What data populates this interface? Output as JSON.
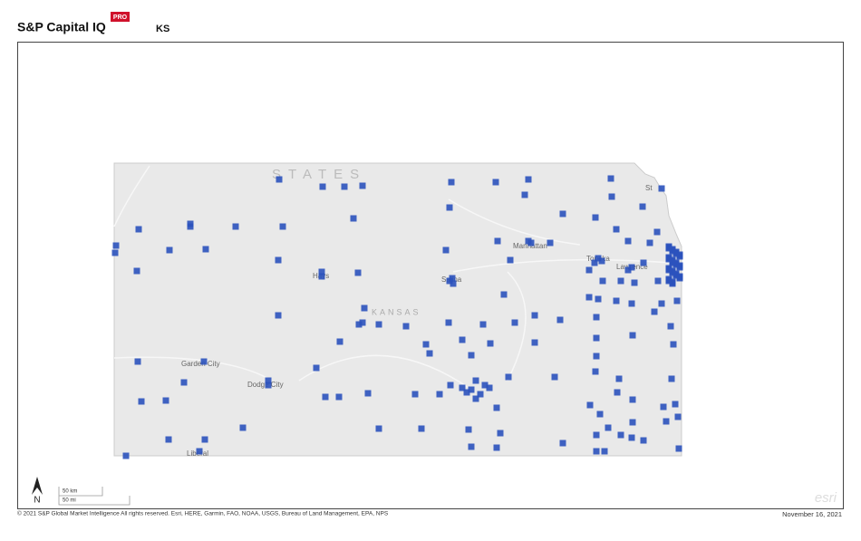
{
  "header": {
    "brand": "S&P Capital IQ",
    "badge": "PRO",
    "region": "KS"
  },
  "map": {
    "labels": {
      "states": "STATES",
      "state": "KANSAS",
      "manhattan": "Manhattan",
      "topeka": "Topeka",
      "lawrence": "Lawrence",
      "hays": "Hays",
      "salina": "Salina",
      "garden_city": "Garden City",
      "dodge_city": "Dodge City",
      "liberal": "Liberal",
      "st_joseph": "St"
    },
    "north": "N",
    "scale_km": "50 km",
    "scale_mi": "50 mi",
    "logo": "esri"
  },
  "footer": {
    "copyright": "© 2021 S&P Global Market Intelligence All rights reserved. Esri, HERE, Garmin, FAO, NOAA, USGS, Bureau of Land Management, EPA, NPS",
    "date": "November 16, 2021"
  }
}
